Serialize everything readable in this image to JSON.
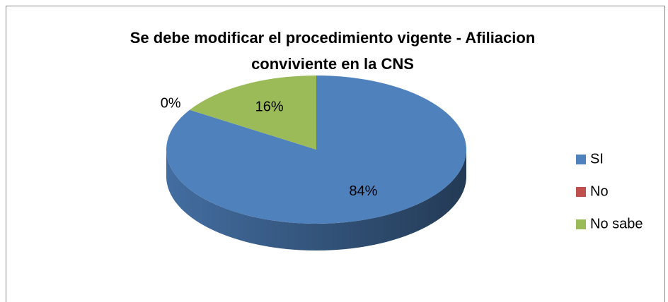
{
  "chart_data": {
    "type": "pie",
    "title": [
      "Se debe modificar el procedimiento vigente - Afiliacion",
      "conviviente en la CNS"
    ],
    "categories": [
      "SI",
      "No",
      "No sabe"
    ],
    "values": [
      84,
      0,
      16
    ],
    "value_labels": [
      "84%",
      "0%",
      "16%"
    ],
    "colors": [
      "#4f81bd",
      "#c0504d",
      "#9bbb59"
    ],
    "legend": "right"
  }
}
